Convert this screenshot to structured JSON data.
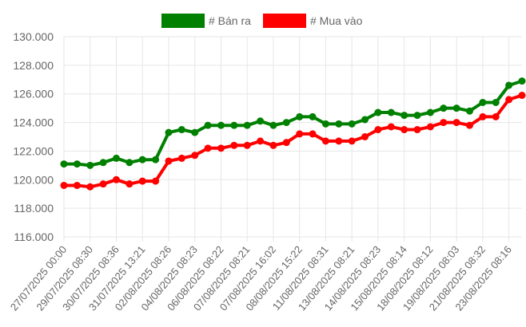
{
  "chart_data": {
    "type": "line",
    "title": "",
    "xlabel": "",
    "ylabel": "",
    "ylim": [
      116000,
      130000
    ],
    "y_ticks": [
      "116.000",
      "118.000",
      "120.000",
      "122.000",
      "124.000",
      "126.000",
      "128.000",
      "130.000"
    ],
    "y_tick_values": [
      116000,
      118000,
      120000,
      122000,
      124000,
      126000,
      128000,
      130000
    ],
    "grid": true,
    "legend_position": "top-center",
    "x_labels_shown": [
      "27/07/2025 00:00",
      "29/07/2025 08:30",
      "30/07/2025 08:36",
      "31/07/2025 13:21",
      "02/08/2025 08:26",
      "04/08/2025 08:23",
      "06/08/2025 08:22",
      "07/08/2025 08:21",
      "07/08/2025 16:02",
      "08/08/2025 15:22",
      "11/08/2025 08:31",
      "13/08/2025 08:21",
      "14/08/2025 08:23",
      "15/08/2025 08:14",
      "18/08/2025 08:12",
      "19/08/2025 08:03",
      "21/08/2025 08:32",
      "23/08/2025 08:16"
    ],
    "series": [
      {
        "name": "# Bán ra",
        "color": "#008000",
        "values": [
          121100,
          121100,
          121000,
          121200,
          121500,
          121200,
          121400,
          121400,
          123300,
          123500,
          123300,
          123800,
          123800,
          123800,
          123800,
          124100,
          123800,
          124000,
          124400,
          124400,
          123900,
          123900,
          123900,
          124200,
          124700,
          124700,
          124500,
          124500,
          124700,
          125000,
          125000,
          124800,
          125400,
          125400,
          126600,
          126900
        ]
      },
      {
        "name": "# Mua vào",
        "color": "#ff0000",
        "values": [
          119600,
          119600,
          119500,
          119700,
          120000,
          119700,
          119900,
          119900,
          121300,
          121500,
          121700,
          122200,
          122200,
          122400,
          122400,
          122700,
          122400,
          122600,
          123200,
          123200,
          122700,
          122700,
          122700,
          123000,
          123500,
          123700,
          123500,
          123500,
          123700,
          124000,
          124000,
          123800,
          124400,
          124400,
          125600,
          125900
        ]
      }
    ]
  }
}
